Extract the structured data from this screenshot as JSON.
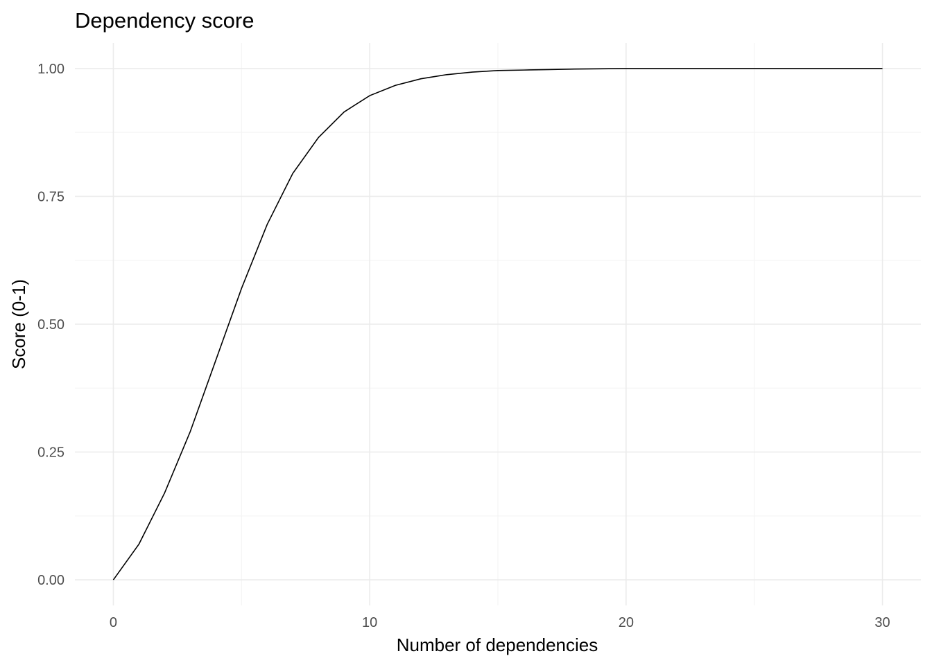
{
  "chart_data": {
    "type": "line",
    "title": "Dependency score",
    "xlabel": "Number of dependencies",
    "ylabel": "Score (0-1)",
    "xlim": [
      -1.5,
      31.5
    ],
    "ylim": [
      -0.05,
      1.05
    ],
    "x_ticks": [
      {
        "value": 0,
        "label": "0"
      },
      {
        "value": 10,
        "label": "10"
      },
      {
        "value": 20,
        "label": "20"
      },
      {
        "value": 30,
        "label": "30"
      }
    ],
    "x_minor_ticks": [
      5,
      15,
      25
    ],
    "y_ticks": [
      {
        "value": 0,
        "label": "0.00"
      },
      {
        "value": 0.25,
        "label": "0.25"
      },
      {
        "value": 0.5,
        "label": "0.50"
      },
      {
        "value": 0.75,
        "label": "0.75"
      },
      {
        "value": 1,
        "label": "1.00"
      }
    ],
    "y_minor_ticks": [
      0.125,
      0.375,
      0.625,
      0.875
    ],
    "grid": true,
    "line_color": "#000000",
    "series": [
      {
        "x": [
          0,
          1,
          2,
          3,
          4,
          5,
          6,
          7,
          8,
          9,
          10,
          11,
          12,
          13,
          14,
          15,
          16,
          17,
          18,
          19,
          20,
          21,
          22,
          23,
          24,
          25,
          26,
          27,
          28,
          29,
          30
        ],
        "y": [
          0.0,
          0.07,
          0.17,
          0.29,
          0.43,
          0.57,
          0.695,
          0.795,
          0.865,
          0.915,
          0.947,
          0.967,
          0.98,
          0.988,
          0.993,
          0.996,
          0.997,
          0.998,
          0.999,
          0.9995,
          1.0,
          1.0,
          1.0,
          1.0,
          1.0,
          1.0,
          1.0,
          1.0,
          1.0,
          1.0,
          1.0
        ]
      }
    ]
  }
}
